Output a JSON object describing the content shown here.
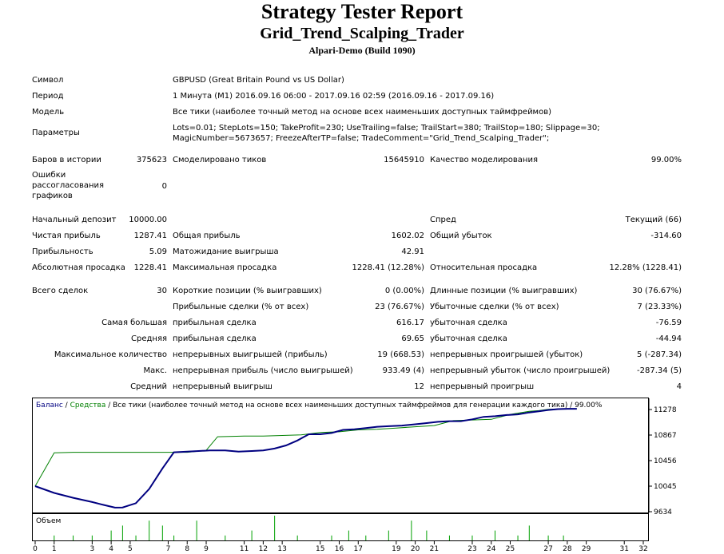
{
  "header": {
    "title": "Strategy Tester Report",
    "expert": "Grid_Trend_Scalping_Trader",
    "server": "Alpari-Demo (Build 1090)"
  },
  "info": {
    "symbol_label": "Символ",
    "symbol_value": "GBPUSD (Great Britain Pound vs US Dollar)",
    "period_label": "Период",
    "period_value": "1 Минута (M1) 2016.09.16 06:00 - 2017.09.16 02:59 (2016.09.16 - 2017.09.16)",
    "model_label": "Модель",
    "model_value": "Все тики (наиболее точный метод на основе всех наименьших доступных таймфреймов)",
    "params_label": "Параметры",
    "params_value": "Lots=0.01; StepLots=150; TakeProfit=230; UseTrailing=false; TrailStart=380; TrailStop=180; Slippage=30; MagicNumber=5673657; FreezeAfterTP=false; TradeComment=\"Grid_Trend_Scalping_Trader\";"
  },
  "bars": {
    "bars_label": "Баров в истории",
    "bars_value": "375623",
    "ticks_label": "Смоделировано тиков",
    "ticks_value": "15645910",
    "quality_label": "Качество моделирования",
    "quality_value": "99.00%",
    "errors_label": "Ошибки рассогласования графиков",
    "errors_value": "0"
  },
  "stats": {
    "deposit_label": "Начальный депозит",
    "deposit_value": "10000.00",
    "spread_label": "Спред",
    "spread_value": "Текущий (66)",
    "net_label": "Чистая прибыль",
    "net_value": "1287.41",
    "gross_profit_label": "Общая прибыль",
    "gross_profit_value": "1602.02",
    "gross_loss_label": "Общий убыток",
    "gross_loss_value": "-314.60",
    "pf_label": "Прибыльность",
    "pf_value": "5.09",
    "expected_label": "Матожидание выигрыша",
    "expected_value": "42.91",
    "abs_dd_label": "Абсолютная просадка",
    "abs_dd_value": "1228.41",
    "max_dd_label": "Максимальная просадка",
    "max_dd_value": "1228.41 (12.28%)",
    "rel_dd_label": "Относительная просадка",
    "rel_dd_value": "12.28% (1228.41)"
  },
  "trades": {
    "total_label": "Всего сделок",
    "total_value": "30",
    "short_label": "Короткие позиции (% выигравших)",
    "short_value": "0 (0.00%)",
    "long_label": "Длинные позиции (% выигравших)",
    "long_value": "30 (76.67%)",
    "profit_trades_label": "Прибыльные сделки (% от всех)",
    "profit_trades_value": "23 (76.67%)",
    "loss_trades_label": "Убыточные сделки (% от всех)",
    "loss_trades_value": "7 (23.33%)",
    "largest_label": "Самая большая",
    "largest_profit_label": "прибыльная сделка",
    "largest_profit_value": "616.17",
    "largest_loss_label": "убыточная сделка",
    "largest_loss_value": "-76.59",
    "average_label": "Средняя",
    "average_profit_label": "прибыльная сделка",
    "average_profit_value": "69.65",
    "average_loss_label": "убыточная сделка",
    "average_loss_value": "-44.94",
    "max_count_label": "Максимальное количество",
    "cons_wins_label": "непрерывных выигрышей (прибыль)",
    "cons_wins_value": "19 (668.53)",
    "cons_losses_label": "непрерывных проигрышей (убыток)",
    "cons_losses_value": "5 (-287.34)",
    "max_label": "Макс.",
    "cons_profit_label": "непрерывная прибыль (число выигрышей)",
    "cons_profit_value": "933.49 (4)",
    "cons_loss_label": "непрерывный убыток (число проигрышей)",
    "cons_loss_value": "-287.34 (5)",
    "avg_cons_label": "Средний",
    "avg_cons_wins_label": "непрерывный выигрыш",
    "avg_cons_wins_value": "12",
    "avg_cons_losses_label": "непрерывный проигрыш",
    "avg_cons_losses_value": "4"
  },
  "chart_data": {
    "type": "line",
    "legend_balance": "Баланс",
    "legend_sep1": " / ",
    "legend_equity": "Средства",
    "legend_rest": " / Все тики (наиболее точный метод на основе всех наименьших доступных таймфреймов для генерации каждого тика) / 99.00%",
    "volume_label": "Объем",
    "ylim": [
      9634,
      11380
    ],
    "xlim": [
      0,
      32
    ],
    "y_ticks": [
      11278,
      10867,
      10456,
      10045,
      9634
    ],
    "x_ticks": [
      0,
      1,
      3,
      4,
      5,
      7,
      8,
      9,
      11,
      12,
      13,
      15,
      16,
      17,
      19,
      20,
      21,
      23,
      24,
      25,
      27,
      28,
      29,
      31,
      32
    ],
    "series": [
      {
        "name": "Баланс",
        "color": "#000080",
        "x": [
          0,
          1,
          2,
          3,
          3.6,
          4.2,
          4.6,
          5.3,
          6.0,
          6.7,
          7.3,
          8,
          8.6,
          9.2,
          10.0,
          10.7,
          11.4,
          12.0,
          12.6,
          13.2,
          13.8,
          14.4,
          15.0,
          15.6,
          16.2,
          16.8,
          17.4,
          18.0,
          18.6,
          19.3,
          20.0,
          20.6,
          21.2,
          21.8,
          22.4,
          23.0,
          23.6,
          24.2,
          24.8,
          25.4,
          26.0,
          26.5,
          27.0,
          27.5,
          28.0,
          28.5
        ],
        "values": [
          10045,
          9936,
          9858,
          9790,
          9743,
          9699,
          9702,
          9770,
          10000,
          10330,
          10590,
          10600,
          10610,
          10620,
          10620,
          10600,
          10610,
          10620,
          10650,
          10700,
          10780,
          10880,
          10880,
          10900,
          10950,
          10960,
          10980,
          11000,
          11010,
          11020,
          11040,
          11060,
          11080,
          11090,
          11090,
          11120,
          11160,
          11170,
          11190,
          11200,
          11230,
          11250,
          11270,
          11285,
          11290,
          11290
        ]
      },
      {
        "name": "Средства",
        "color": "#008000",
        "x": [
          0,
          1.0,
          2,
          4.2,
          5.3,
          6.0,
          8.0,
          9.0,
          9.6,
          11.0,
          12.0,
          13.0,
          14.0,
          15.0,
          16.0,
          17.0,
          18.0,
          19.0,
          20.0,
          21.0,
          22.0,
          23.0,
          24.0,
          25.0,
          26.0,
          26.5,
          27.0,
          28.0,
          28.5
        ],
        "values": [
          10045,
          10580,
          10590,
          10590,
          10590,
          10590,
          10590,
          10620,
          10840,
          10850,
          10850,
          10860,
          10870,
          10910,
          10920,
          10950,
          10960,
          10980,
          11000,
          11020,
          11100,
          11110,
          11120,
          11200,
          11250,
          11260,
          11280,
          11290,
          11290
        ]
      }
    ],
    "volume": {
      "x": [
        1.0,
        2.0,
        3.0,
        4.0,
        4.6,
        5.3,
        6.0,
        6.7,
        7.3,
        8.5,
        10,
        11.4,
        12.6,
        13.8,
        15.6,
        16.5,
        17.4,
        18.6,
        19.8,
        20.6,
        21.8,
        23.0,
        24.2,
        25.4,
        26.0,
        27.0,
        27.8
      ],
      "values": [
        1,
        1,
        1,
        2,
        3,
        1,
        4,
        3,
        1,
        4,
        1,
        2,
        5,
        1,
        1,
        2,
        1,
        2,
        4,
        2,
        1,
        1,
        2,
        1,
        3,
        1,
        1
      ]
    }
  }
}
